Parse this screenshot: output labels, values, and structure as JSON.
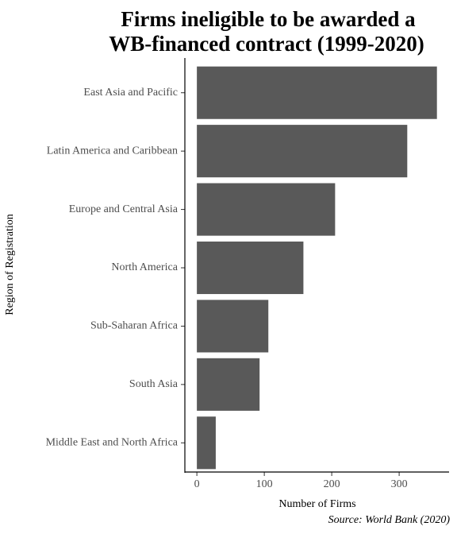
{
  "chart_data": {
    "type": "barh",
    "title": [
      "Firms ineligible to be awarded a",
      "WB-financed contract (1999-2020)"
    ],
    "xlabel": "Number of Firms",
    "ylabel": "Region of Registration",
    "caption": "Source: World Bank (2020)",
    "categories": [
      "East Asia and Pacific",
      "Latin America and Caribbean",
      "Europe and Central Asia",
      "North America",
      "Sub-Saharan Africa",
      "South Asia",
      "Middle East and North Africa"
    ],
    "values": [
      356,
      312,
      205,
      158,
      106,
      93,
      28
    ],
    "color": "#595959",
    "xlim": [
      -17.8,
      374
    ],
    "xticks": [
      0,
      100,
      200,
      300
    ],
    "grid": false
  }
}
